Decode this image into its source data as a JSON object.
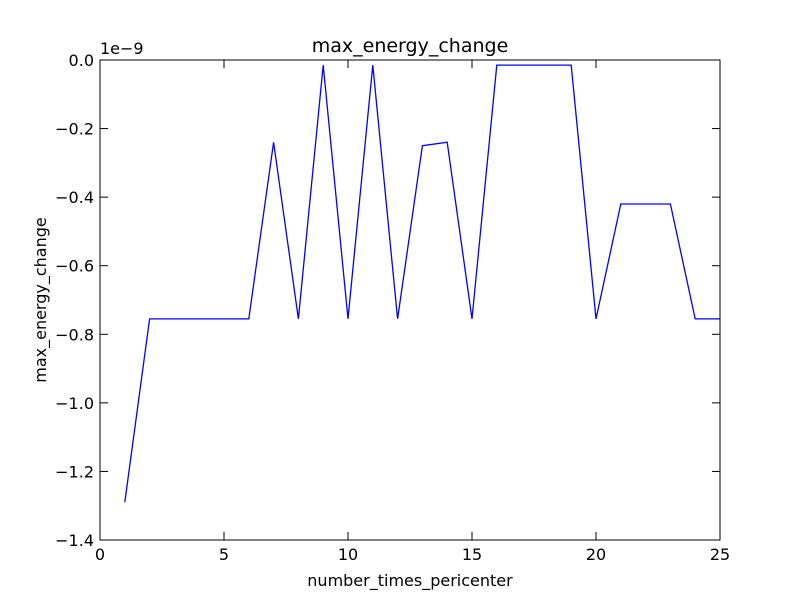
{
  "chart_data": {
    "type": "line",
    "title": "max_energy_change",
    "xlabel": "number_times_pericenter",
    "ylabel": "max_energy_change",
    "y_offset_text": "1e−9",
    "xlim": [
      0,
      25
    ],
    "ylim": [
      -1.4,
      0.0
    ],
    "x_ticks": [
      0,
      5,
      10,
      15,
      20,
      25
    ],
    "x_tick_labels": [
      "0",
      "5",
      "10",
      "15",
      "20",
      "25"
    ],
    "y_ticks": [
      0.0,
      -0.2,
      -0.4,
      -0.6,
      -0.8,
      -1.0,
      -1.2,
      -1.4
    ],
    "y_tick_labels": [
      "0.0",
      "−0.2",
      "−0.4",
      "−0.6",
      "−0.8",
      "−1.0",
      "−1.2",
      "−1.4"
    ],
    "grid": false,
    "series": [
      {
        "color": "#0000ff",
        "x": [
          1,
          2,
          3,
          4,
          5,
          6,
          7,
          8,
          9,
          10,
          11,
          12,
          13,
          14,
          15,
          16,
          17,
          18,
          19,
          20,
          21,
          22,
          23,
          24,
          25
        ],
        "y": [
          -1.29,
          -0.755,
          -0.755,
          -0.755,
          -0.755,
          -0.755,
          -0.24,
          -0.755,
          -0.015,
          -0.755,
          -0.015,
          -0.755,
          -0.25,
          -0.24,
          -0.755,
          -0.015,
          -0.015,
          -0.015,
          -0.015,
          -0.755,
          -0.42,
          -0.42,
          -0.42,
          -0.755,
          -0.755
        ]
      }
    ]
  }
}
